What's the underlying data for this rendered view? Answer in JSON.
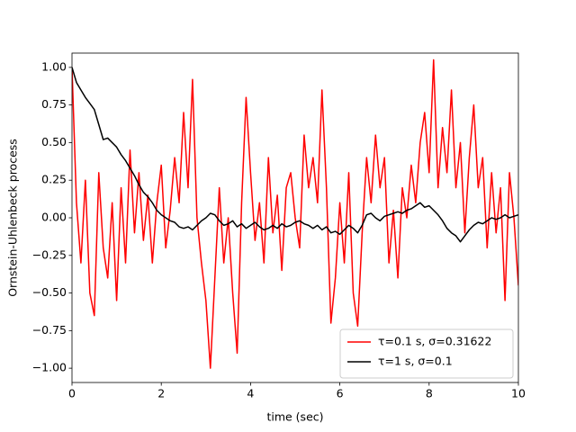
{
  "chart_data": {
    "type": "line",
    "xlabel": "time (sec)",
    "ylabel": "Ornstein-Uhlenbeck process",
    "xlim": [
      0,
      10
    ],
    "ylim": [
      -1.095,
      1.095
    ],
    "xticks": [
      0,
      2,
      4,
      6,
      8,
      10
    ],
    "yticks": [
      {
        "value": -1,
        "label": "−1.00"
      },
      {
        "value": -0.75,
        "label": "−0.75"
      },
      {
        "value": -0.5,
        "label": "−0.50"
      },
      {
        "value": -0.25,
        "label": "−0.25"
      },
      {
        "value": 0,
        "label": "0.00"
      },
      {
        "value": 0.25,
        "label": "0.25"
      },
      {
        "value": 0.5,
        "label": "0.50"
      },
      {
        "value": 0.75,
        "label": "0.75"
      },
      {
        "value": 1,
        "label": "1.00"
      }
    ],
    "grid": false,
    "legend": "lower right",
    "x": [
      0,
      0.1,
      0.2,
      0.3,
      0.4,
      0.5,
      0.6,
      0.7,
      0.8,
      0.9,
      1,
      1.1,
      1.2,
      1.3,
      1.4,
      1.5,
      1.6,
      1.7,
      1.8,
      1.9,
      2,
      2.1,
      2.2,
      2.3,
      2.4,
      2.5,
      2.6,
      2.7,
      2.8,
      2.9,
      3,
      3.1,
      3.2,
      3.3,
      3.4,
      3.5,
      3.6,
      3.7,
      3.8,
      3.9,
      4,
      4.1,
      4.2,
      4.3,
      4.4,
      4.5,
      4.6,
      4.7,
      4.8,
      4.9,
      5,
      5.1,
      5.2,
      5.3,
      5.4,
      5.5,
      5.6,
      5.7,
      5.8,
      5.9,
      6,
      6.1,
      6.2,
      6.3,
      6.4,
      6.5,
      6.6,
      6.7,
      6.8,
      6.9,
      7,
      7.1,
      7.2,
      7.3,
      7.4,
      7.5,
      7.6,
      7.7,
      7.8,
      7.9,
      8,
      8.1,
      8.2,
      8.3,
      8.4,
      8.5,
      8.6,
      8.7,
      8.8,
      8.9,
      9,
      9.1,
      9.2,
      9.3,
      9.4,
      9.5,
      9.6,
      9.7,
      9.8,
      9.9,
      10
    ],
    "series": [
      {
        "name": "τ=0.1 s, σ=0.31622",
        "color": "#ff0000",
        "values": [
          1.0,
          0.1,
          -0.3,
          0.25,
          -0.5,
          -0.65,
          0.3,
          -0.2,
          -0.4,
          0.1,
          -0.55,
          0.2,
          -0.3,
          0.45,
          -0.1,
          0.3,
          -0.15,
          0.15,
          -0.3,
          0.1,
          0.35,
          -0.2,
          0.05,
          0.4,
          0.1,
          0.7,
          0.2,
          0.92,
          0.0,
          -0.3,
          -0.55,
          -1.0,
          -0.4,
          0.2,
          -0.3,
          0.0,
          -0.5,
          -0.9,
          0.1,
          0.8,
          0.3,
          -0.15,
          0.1,
          -0.3,
          0.4,
          -0.1,
          0.15,
          -0.35,
          0.2,
          0.3,
          0.0,
          -0.2,
          0.55,
          0.2,
          0.4,
          0.1,
          0.85,
          0.2,
          -0.7,
          -0.4,
          0.1,
          -0.3,
          0.3,
          -0.5,
          -0.72,
          -0.1,
          0.4,
          0.1,
          0.55,
          0.2,
          0.4,
          -0.3,
          0.05,
          -0.4,
          0.2,
          0.0,
          0.35,
          0.1,
          0.5,
          0.7,
          0.3,
          1.05,
          0.2,
          0.6,
          0.3,
          0.85,
          0.2,
          0.5,
          -0.1,
          0.4,
          0.75,
          0.2,
          0.4,
          -0.2,
          0.3,
          -0.1,
          0.2,
          -0.55,
          0.3,
          0.0,
          -0.45
        ]
      },
      {
        "name": "τ=1 s, σ=0.1",
        "color": "#000000",
        "values": [
          1.0,
          0.9,
          0.85,
          0.8,
          0.76,
          0.72,
          0.62,
          0.52,
          0.53,
          0.5,
          0.47,
          0.42,
          0.38,
          0.33,
          0.28,
          0.22,
          0.17,
          0.14,
          0.1,
          0.05,
          0.02,
          0.0,
          -0.02,
          -0.03,
          -0.06,
          -0.07,
          -0.06,
          -0.08,
          -0.05,
          -0.02,
          0.0,
          0.03,
          0.02,
          -0.02,
          -0.05,
          -0.04,
          -0.02,
          -0.06,
          -0.04,
          -0.07,
          -0.05,
          -0.03,
          -0.06,
          -0.08,
          -0.07,
          -0.05,
          -0.07,
          -0.04,
          -0.06,
          -0.05,
          -0.03,
          -0.02,
          -0.04,
          -0.05,
          -0.07,
          -0.05,
          -0.08,
          -0.06,
          -0.1,
          -0.09,
          -0.11,
          -0.08,
          -0.05,
          -0.07,
          -0.1,
          -0.05,
          0.02,
          0.03,
          0.0,
          -0.02,
          0.01,
          0.02,
          0.03,
          0.04,
          0.03,
          0.05,
          0.06,
          0.08,
          0.1,
          0.07,
          0.08,
          0.05,
          0.02,
          -0.02,
          -0.07,
          -0.1,
          -0.12,
          -0.16,
          -0.12,
          -0.08,
          -0.05,
          -0.03,
          -0.04,
          -0.02,
          0.0,
          -0.01,
          0.0,
          0.02,
          0.0,
          0.01,
          0.02
        ]
      }
    ]
  }
}
